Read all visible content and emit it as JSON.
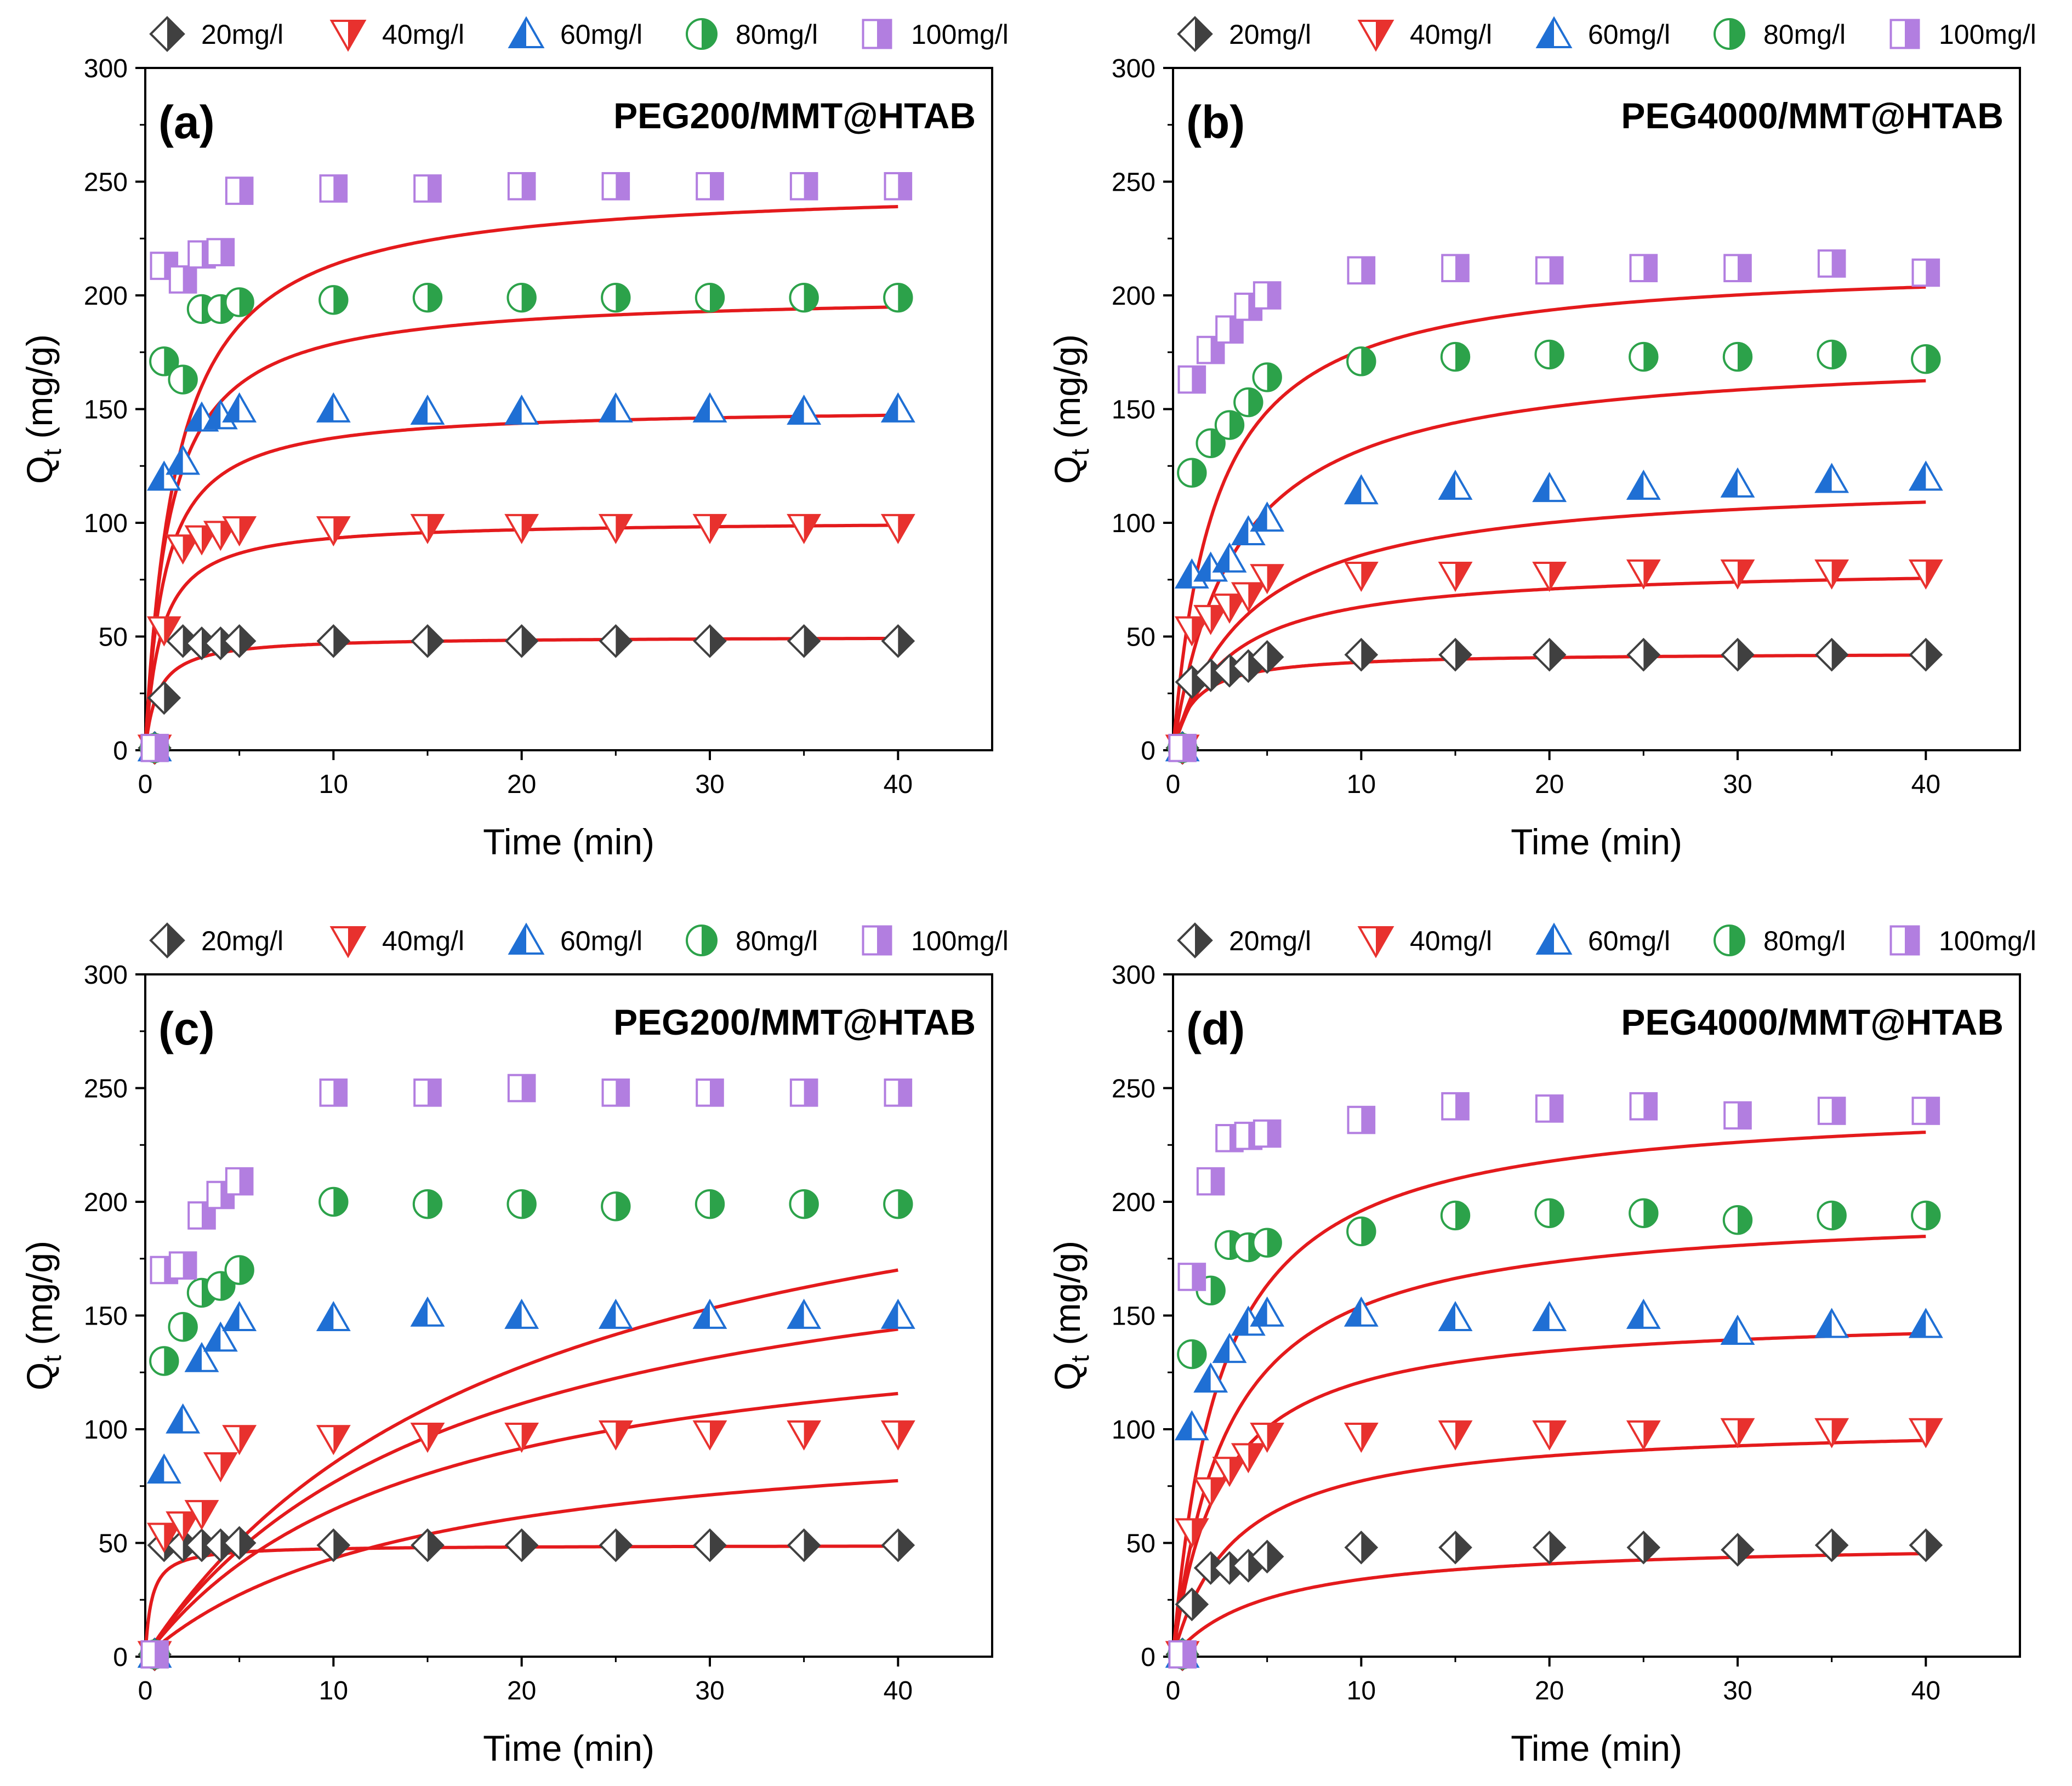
{
  "figure": {
    "background": "#ffffff",
    "fit_color": "#e41a1c",
    "legend": [
      {
        "label": "20mg/l",
        "marker": "diamond",
        "color": "#404040"
      },
      {
        "label": "40mg/l",
        "marker": "triangle-down",
        "color": "#e8312e"
      },
      {
        "label": "60mg/l",
        "marker": "triangle-up",
        "color": "#1f6fd4"
      },
      {
        "label": "80mg/l",
        "marker": "circle",
        "color": "#2ca24a"
      },
      {
        "label": "100mg/l",
        "marker": "square",
        "color": "#b27ee0"
      }
    ]
  },
  "chart_data": [
    {
      "type": "scatter",
      "letter": "(a)",
      "title": "PEG200/MMT@HTAB",
      "xlabel": "Time (min)",
      "ylabel": "Q",
      "ylabel_sub": "t",
      "ylabel_unit": " (mg/g)",
      "xlim": [
        0,
        45
      ],
      "ylim": [
        0,
        300
      ],
      "x_ticks": [
        0,
        10,
        20,
        30,
        40
      ],
      "y_ticks": [
        0,
        50,
        100,
        150,
        200,
        250,
        300
      ],
      "x": [
        0.5,
        1,
        2,
        3,
        4,
        5,
        10,
        15,
        20,
        25,
        30,
        35,
        40
      ],
      "series": [
        {
          "name": "20mg/l",
          "values": [
            1,
            23,
            48,
            47,
            47,
            48,
            48,
            48,
            48,
            48,
            48,
            48,
            48
          ],
          "fit": {
            "qe": 50,
            "k": 1.5
          }
        },
        {
          "name": "40mg/l",
          "values": [
            1,
            53,
            89,
            93,
            95,
            97,
            97,
            98,
            98,
            98,
            98,
            98,
            98
          ],
          "fit": {
            "qe": 101,
            "k": 1.2
          }
        },
        {
          "name": "60mg/l",
          "values": [
            1,
            120,
            127,
            146,
            147,
            150,
            150,
            149,
            149,
            150,
            150,
            149,
            150
          ],
          "fit": {
            "qe": 151,
            "k": 1.0
          }
        },
        {
          "name": "80mg/l",
          "values": [
            1,
            171,
            163,
            194,
            194,
            197,
            198,
            199,
            199,
            199,
            199,
            199,
            199
          ],
          "fit": {
            "qe": 201,
            "k": 0.8
          }
        },
        {
          "name": "100mg/l",
          "values": [
            1,
            213,
            207,
            218,
            219,
            246,
            247,
            247,
            248,
            248,
            248,
            248,
            248
          ],
          "fit": {
            "qe": 249,
            "k": 0.6
          }
        }
      ]
    },
    {
      "type": "scatter",
      "letter": "(b)",
      "title": "PEG4000/MMT@HTAB",
      "xlabel": "Time (min)",
      "ylabel": "Q",
      "ylabel_sub": "t",
      "ylabel_unit": " (mg/g)",
      "xlim": [
        0,
        45
      ],
      "ylim": [
        0,
        300
      ],
      "x_ticks": [
        0,
        10,
        20,
        30,
        40
      ],
      "y_ticks": [
        0,
        50,
        100,
        150,
        200,
        250,
        300
      ],
      "x": [
        0.5,
        1,
        2,
        3,
        4,
        5,
        10,
        15,
        20,
        25,
        30,
        35,
        40
      ],
      "series": [
        {
          "name": "20mg/l",
          "values": [
            1,
            30,
            33,
            35,
            37,
            41,
            42,
            42,
            42,
            42,
            42,
            42,
            42
          ],
          "fit": {
            "qe": 43,
            "k": 0.9
          }
        },
        {
          "name": "40mg/l",
          "values": [
            1,
            53,
            58,
            63,
            68,
            76,
            77,
            77,
            77,
            78,
            78,
            78,
            78
          ],
          "fit": {
            "qe": 81,
            "k": 0.35
          }
        },
        {
          "name": "60mg/l",
          "values": [
            1,
            77,
            80,
            84,
            96,
            102,
            114,
            116,
            115,
            116,
            117,
            119,
            120
          ],
          "fit": {
            "qe": 120,
            "k": 0.25
          }
        },
        {
          "name": "80mg/l",
          "values": [
            1,
            122,
            135,
            143,
            153,
            164,
            171,
            173,
            174,
            173,
            173,
            174,
            172
          ],
          "fit": {
            "qe": 176,
            "k": 0.3
          }
        },
        {
          "name": "100mg/l",
          "values": [
            1,
            163,
            176,
            185,
            195,
            200,
            211,
            212,
            211,
            212,
            212,
            214,
            210
          ],
          "fit": {
            "qe": 215,
            "k": 0.45
          }
        }
      ]
    },
    {
      "type": "scatter",
      "letter": "(c)",
      "title": "PEG200/MMT@HTAB",
      "xlabel": "Time (min)",
      "ylabel": "Q",
      "ylabel_sub": "t",
      "ylabel_unit": " (mg/g)",
      "xlim": [
        0,
        45
      ],
      "ylim": [
        0,
        300
      ],
      "x_ticks": [
        0,
        10,
        20,
        30,
        40
      ],
      "y_ticks": [
        0,
        50,
        100,
        150,
        200,
        250,
        300
      ],
      "x": [
        0.5,
        1,
        2,
        3,
        4,
        5,
        10,
        15,
        20,
        25,
        30,
        35,
        40
      ],
      "series": [
        {
          "name": "20mg/l",
          "values": [
            1,
            49,
            49,
            49,
            49,
            50,
            49,
            49,
            49,
            49,
            49,
            49,
            49
          ],
          "fit": {
            "qe": 49,
            "k": 3.0
          }
        },
        {
          "name": "40mg/l",
          "values": [
            1,
            53,
            58,
            63,
            84,
            96,
            96,
            97,
            97,
            98,
            98,
            98,
            98
          ],
          "fit": {
            "qe": 105,
            "k": 0.07
          }
        },
        {
          "name": "60mg/l",
          "values": [
            1,
            82,
            104,
            131,
            140,
            149,
            149,
            151,
            150,
            150,
            150,
            150,
            150
          ],
          "fit": {
            "qe": 157,
            "k": 0.07
          }
        },
        {
          "name": "80mg/l",
          "values": [
            1,
            130,
            145,
            160,
            163,
            170,
            200,
            199,
            199,
            198,
            199,
            199,
            199
          ],
          "fit": {
            "qe": 204,
            "k": 0.06
          }
        },
        {
          "name": "100mg/l",
          "values": [
            1,
            170,
            172,
            194,
            203,
            209,
            248,
            248,
            250,
            248,
            248,
            248,
            248
          ],
          "fit": {
            "qe": 255,
            "k": 0.05
          }
        }
      ]
    },
    {
      "type": "scatter",
      "letter": "(d)",
      "title": "PEG4000/MMT@HTAB",
      "xlabel": "Time (min)",
      "ylabel": "Q",
      "ylabel_sub": "t",
      "ylabel_unit": " (mg/g)",
      "xlim": [
        0,
        45
      ],
      "ylim": [
        0,
        300
      ],
      "x_ticks": [
        0,
        10,
        20,
        30,
        40
      ],
      "y_ticks": [
        0,
        50,
        100,
        150,
        200,
        250,
        300
      ],
      "x": [
        0.5,
        1,
        2,
        3,
        4,
        5,
        10,
        15,
        20,
        25,
        30,
        35,
        40
      ],
      "series": [
        {
          "name": "20mg/l",
          "values": [
            1,
            23,
            39,
            39,
            40,
            44,
            48,
            48,
            48,
            48,
            47,
            49,
            49
          ],
          "fit": {
            "qe": 51,
            "k": 0.2
          }
        },
        {
          "name": "40mg/l",
          "values": [
            1,
            55,
            73,
            82,
            88,
            97,
            97,
            98,
            98,
            98,
            99,
            99,
            99
          ],
          "fit": {
            "qe": 103,
            "k": 0.3
          }
        },
        {
          "name": "60mg/l",
          "values": [
            1,
            101,
            122,
            135,
            147,
            151,
            151,
            149,
            149,
            150,
            143,
            146,
            146
          ],
          "fit": {
            "qe": 151,
            "k": 0.4
          }
        },
        {
          "name": "80mg/l",
          "values": [
            1,
            133,
            161,
            181,
            180,
            182,
            187,
            194,
            195,
            195,
            192,
            194,
            194
          ],
          "fit": {
            "qe": 198,
            "k": 0.35
          }
        },
        {
          "name": "100mg/l",
          "values": [
            1,
            167,
            209,
            228,
            229,
            230,
            236,
            242,
            241,
            242,
            238,
            240,
            240
          ],
          "fit": {
            "qe": 245,
            "k": 0.4
          }
        }
      ]
    }
  ]
}
